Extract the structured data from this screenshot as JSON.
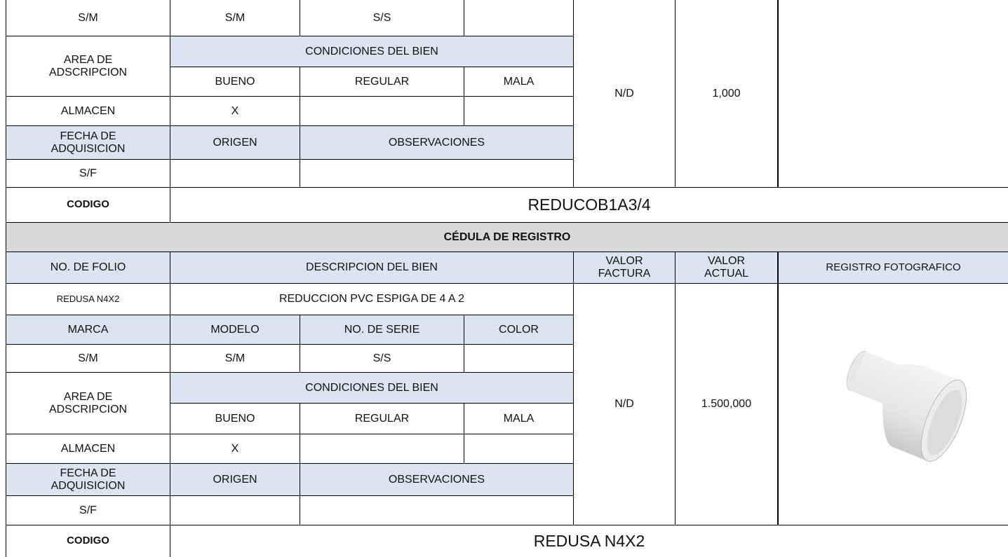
{
  "top_block": {
    "serie_row": [
      "S/M",
      "S/M",
      "S/S"
    ],
    "area_label": "AREA DE ADSCRIPCION",
    "condiciones_label": "CONDICIONES DEL BIEN",
    "condiciones": [
      "BUENO",
      "REGULAR",
      "MALA"
    ],
    "area": "ALMACEN",
    "bueno": "X",
    "fecha_label": "FECHA DE ADQUISICION",
    "origen_label": "ORIGEN",
    "observaciones_label": "OBSERVACIONES",
    "fecha": "S/F",
    "valor_factura": "N/D",
    "valor_actual": "1,000",
    "codigo_label": "CODIGO",
    "codigo": "REDUCOB1A3/4"
  },
  "section_title": "CÉDULA DE REGISTRO",
  "record": {
    "headers": [
      "NO. DE FOLIO",
      "DESCRIPCION DEL BIEN",
      "VALOR FACTURA",
      "VALOR ACTUAL",
      "REGISTRO FOTOGRAFICO"
    ],
    "folio": "REDUSA N4X2",
    "descripcion": "REDUCCION PVC ESPIGA DE 4 A 2",
    "detail_headers": [
      "MARCA",
      "MODELO",
      "NO. DE SERIE",
      "COLOR"
    ],
    "serie_row": [
      "S/M",
      "S/M",
      "S/S"
    ],
    "area_label": "AREA DE ADSCRIPCION",
    "condiciones_label": "CONDICIONES DEL BIEN",
    "condiciones": [
      "BUENO",
      "REGULAR",
      "MALA"
    ],
    "area": "ALMACEN",
    "bueno": "X",
    "fecha_label": "FECHA DE ADQUISICION",
    "origen_label": "ORIGEN",
    "observaciones_label": "OBSERVACIONES",
    "fecha": "S/F",
    "valor_factura": "N/D",
    "valor_actual": "1.500,000",
    "codigo_label": "CODIGO",
    "codigo": "REDUSA N4X2"
  }
}
